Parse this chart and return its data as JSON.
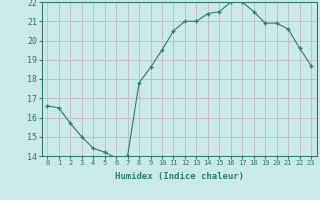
{
  "x": [
    0,
    1,
    2,
    3,
    4,
    5,
    6,
    7,
    8,
    9,
    10,
    11,
    12,
    13,
    14,
    15,
    16,
    17,
    18,
    19,
    20,
    21,
    22,
    23
  ],
  "y": [
    16.6,
    16.5,
    15.7,
    15.0,
    14.4,
    14.2,
    13.9,
    14.0,
    17.8,
    18.6,
    19.5,
    20.5,
    21.0,
    21.0,
    21.4,
    21.5,
    22.0,
    22.0,
    21.5,
    20.9,
    20.9,
    20.6,
    19.6,
    18.7
  ],
  "line_color": "#2e7d6e",
  "marker": "+",
  "marker_size": 4,
  "bg_color": "#cce9e9",
  "grid_color": "#c0afc0",
  "xlabel": "Humidex (Indice chaleur)",
  "ylim": [
    14,
    22
  ],
  "xlim": [
    -0.5,
    23.5
  ],
  "yticks": [
    14,
    15,
    16,
    17,
    18,
    19,
    20,
    21,
    22
  ],
  "xticks": [
    0,
    1,
    2,
    3,
    4,
    5,
    6,
    7,
    8,
    9,
    10,
    11,
    12,
    13,
    14,
    15,
    16,
    17,
    18,
    19,
    20,
    21,
    22,
    23
  ]
}
